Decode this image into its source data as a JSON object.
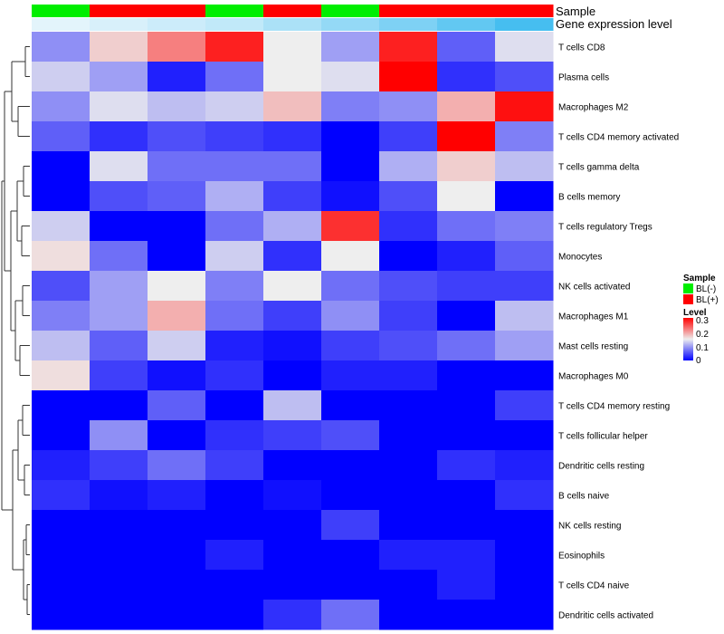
{
  "chart_data": {
    "type": "heatmap",
    "annotation_rows": [
      {
        "label": "Sample",
        "values": [
          "BL(-)",
          "BL(+)",
          "BL(+)",
          "BL(-)",
          "BL(+)",
          "BL(-)",
          "BL(+)",
          "BL(+)",
          "BL(+)"
        ]
      },
      {
        "label": "Gene expression level",
        "values": [
          0.02,
          0.04,
          0.06,
          0.08,
          0.12,
          0.16,
          0.2,
          0.25,
          0.3
        ]
      }
    ],
    "rows": [
      "T cells CD8",
      "Plasma cells",
      "Macrophages M2",
      "T cells CD4 memory activated",
      "T cells gamma delta",
      "B cells memory",
      "T cells regulatory  Tregs",
      "Monocytes",
      "NK cells activated",
      "Macrophages M1",
      "Mast cells resting",
      "Macrophages M0",
      "T cells CD4 memory resting",
      "T cells follicular helper",
      "Dendritic cells resting",
      "B cells naive",
      "NK cells resting",
      "Eosinophils",
      "T cells CD4 naive",
      "Dendritic cells activated"
    ],
    "values": [
      [
        0.09,
        0.17,
        0.22,
        0.28,
        0.15,
        0.1,
        0.28,
        0.06,
        0.14
      ],
      [
        0.13,
        0.1,
        0.02,
        0.07,
        0.15,
        0.14,
        0.3,
        0.03,
        0.05
      ],
      [
        0.09,
        0.14,
        0.12,
        0.13,
        0.18,
        0.08,
        0.09,
        0.19,
        0.29
      ],
      [
        0.06,
        0.03,
        0.05,
        0.04,
        0.03,
        0.0,
        0.04,
        0.3,
        0.08
      ],
      [
        0.0,
        0.14,
        0.07,
        0.07,
        0.07,
        0.0,
        0.11,
        0.17,
        0.12
      ],
      [
        0.0,
        0.05,
        0.06,
        0.11,
        0.04,
        0.01,
        0.05,
        0.15,
        0.0
      ],
      [
        0.13,
        0.0,
        0.0,
        0.07,
        0.11,
        0.27,
        0.03,
        0.07,
        0.08
      ],
      [
        0.16,
        0.07,
        0.0,
        0.13,
        0.03,
        0.15,
        0.0,
        0.02,
        0.06
      ],
      [
        0.05,
        0.1,
        0.15,
        0.08,
        0.15,
        0.07,
        0.05,
        0.04,
        0.04
      ],
      [
        0.08,
        0.1,
        0.19,
        0.07,
        0.04,
        0.09,
        0.04,
        0.0,
        0.12
      ],
      [
        0.12,
        0.06,
        0.13,
        0.02,
        0.01,
        0.04,
        0.05,
        0.07,
        0.1
      ],
      [
        0.16,
        0.04,
        0.01,
        0.03,
        0.0,
        0.02,
        0.02,
        0.0,
        0.0
      ],
      [
        0.0,
        0.0,
        0.06,
        0.0,
        0.12,
        0.0,
        0.0,
        0.0,
        0.04
      ],
      [
        0.0,
        0.09,
        0.0,
        0.03,
        0.04,
        0.05,
        0.0,
        0.0,
        0.0
      ],
      [
        0.02,
        0.04,
        0.07,
        0.04,
        0.0,
        0.0,
        0.0,
        0.03,
        0.02
      ],
      [
        0.03,
        0.01,
        0.02,
        0.0,
        0.01,
        0.0,
        0.0,
        0.0,
        0.03
      ],
      [
        0.0,
        0.0,
        0.0,
        0.0,
        0.0,
        0.04,
        0.0,
        0.0,
        0.0
      ],
      [
        0.0,
        0.0,
        0.0,
        0.02,
        0.0,
        0.0,
        0.02,
        0.02,
        0.0
      ],
      [
        0.0,
        0.0,
        0.0,
        0.0,
        0.0,
        0.0,
        0.0,
        0.02,
        0.0
      ],
      [
        0.0,
        0.0,
        0.0,
        0.0,
        0.03,
        0.07,
        0.0,
        0.0,
        0.0
      ]
    ],
    "color_scale": {
      "low": "#0000ff",
      "mid": "#eeeeee",
      "high": "#ff0000",
      "min": 0,
      "mid_value": 0.15,
      "max": 0.3
    },
    "legend": {
      "sample_title": "Sample",
      "sample_entries": [
        {
          "label": "BL(-)",
          "color": "#00ee00"
        },
        {
          "label": "BL(+)",
          "color": "#ff0000"
        }
      ],
      "level_title": "Level",
      "level_ticks": [
        "0.3",
        "0.2",
        "0.1",
        "0"
      ],
      "placement": "right"
    },
    "dendrogram": "rows",
    "grid": false
  }
}
